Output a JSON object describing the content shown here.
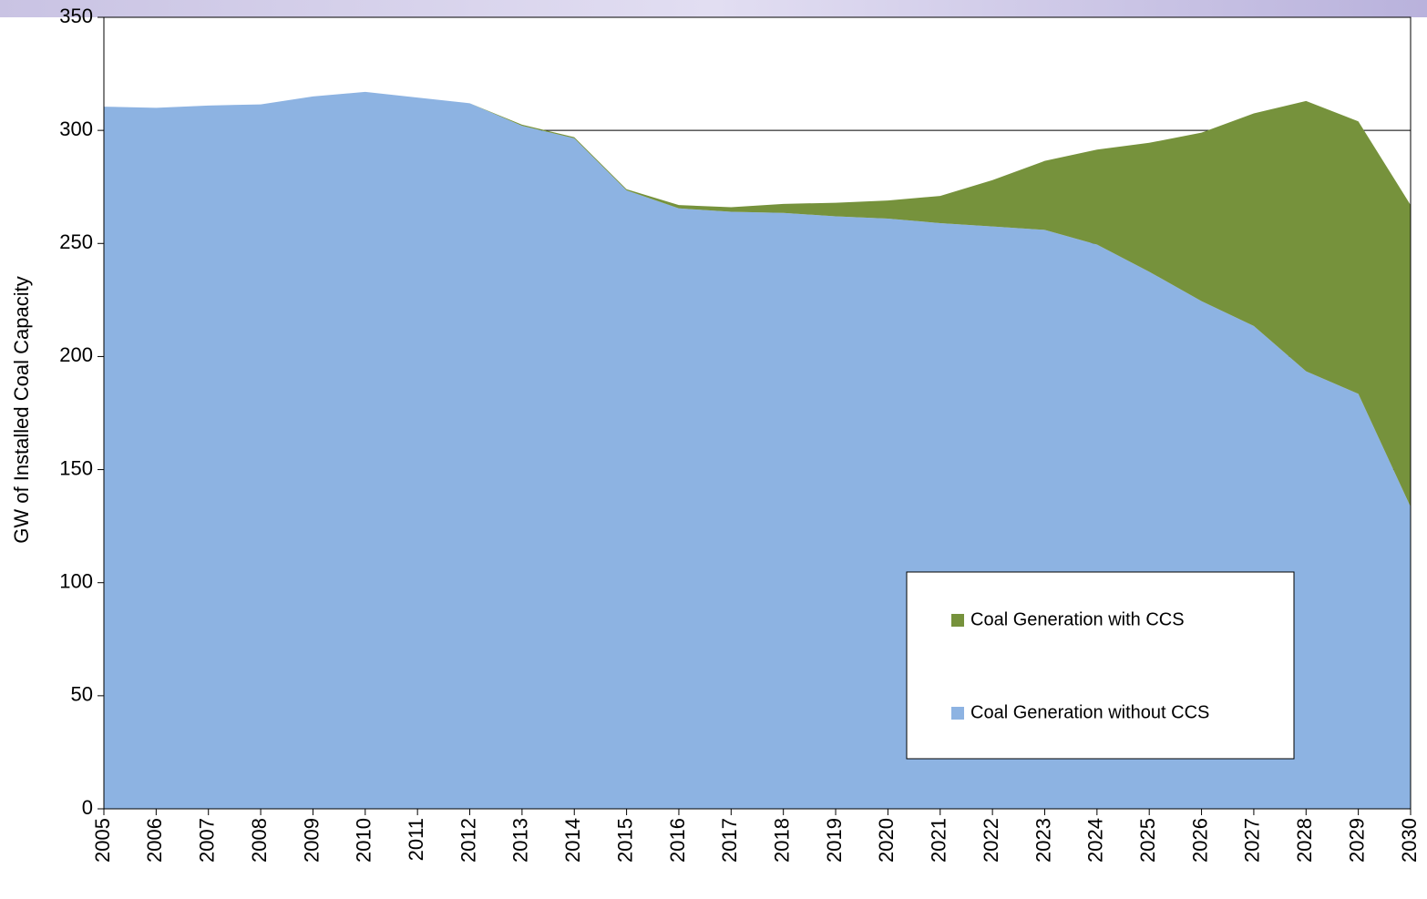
{
  "chart_data": {
    "type": "stacked_area",
    "y_label": "GW of Installed Coal Capacity",
    "categories": [
      2005,
      2006,
      2007,
      2008,
      2009,
      2010,
      2011,
      2012,
      2013,
      2014,
      2015,
      2016,
      2017,
      2018,
      2019,
      2020,
      2021,
      2022,
      2023,
      2024,
      2025,
      2026,
      2027,
      2028,
      2029,
      2030
    ],
    "series": [
      {
        "name": "Coal Generation without CCS",
        "color": "#8db3e2",
        "values": [
          310.5,
          310,
          311,
          311.5,
          315,
          317,
          314.5,
          312,
          302,
          296.5,
          273.5,
          265.5,
          264,
          263.5,
          262,
          261,
          259,
          257.5,
          256,
          249.5,
          237.5,
          224.5,
          213.5,
          193.5,
          183.5,
          133.5
        ]
      },
      {
        "name": "Coal Generation with CCS",
        "color": "#76923c",
        "values": [
          0,
          0,
          0,
          0,
          0,
          0,
          0,
          0,
          0.5,
          0.5,
          0.5,
          1.5,
          2,
          4,
          6,
          8,
          12,
          20.5,
          30.5,
          42,
          57,
          74.5,
          94,
          119.5,
          120.5,
          133.5
        ]
      }
    ],
    "ylim": [
      0,
      350
    ],
    "yticks": [
      0,
      50,
      100,
      150,
      200,
      250,
      300,
      350
    ],
    "grid": true
  }
}
